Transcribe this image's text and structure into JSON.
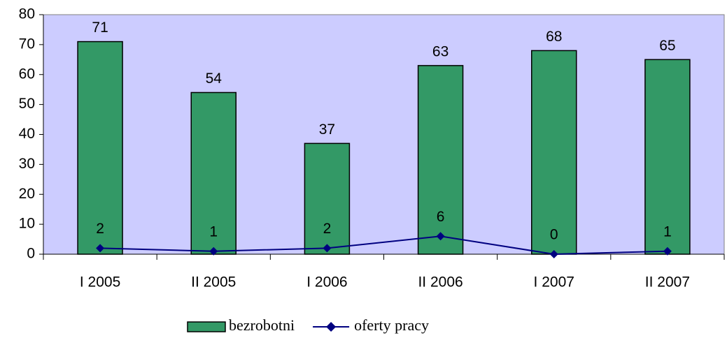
{
  "chart_data": {
    "type": "bar",
    "categories": [
      "I 2005",
      "II 2005",
      "I 2006",
      "II 2006",
      "I 2007",
      "II 2007"
    ],
    "series": [
      {
        "name": "bezrobotni",
        "type": "bar",
        "color": "#339966",
        "values": [
          71,
          54,
          37,
          63,
          68,
          65
        ]
      },
      {
        "name": "oferty pracy",
        "type": "line",
        "color": "#000080",
        "values": [
          2,
          1,
          2,
          6,
          0,
          1
        ]
      }
    ],
    "ylim": [
      0,
      80
    ],
    "yticks": [
      0,
      10,
      20,
      30,
      40,
      50,
      60,
      70,
      80
    ],
    "grid": false,
    "plot_background": "#ccccff",
    "legend": "bottom"
  }
}
